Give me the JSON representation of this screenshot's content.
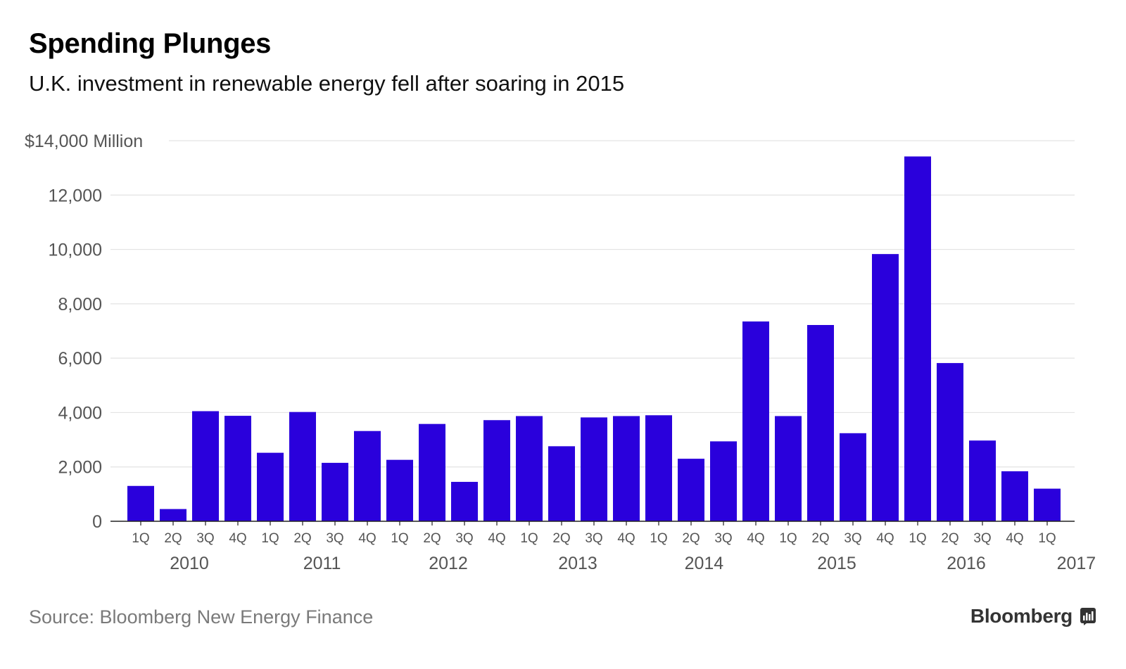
{
  "header": {
    "title": "Spending Plunges",
    "subtitle": "U.K. investment in renewable energy fell after soaring in 2015"
  },
  "footer": {
    "source": "Source: Bloomberg New Energy Finance",
    "brand": "Bloomberg"
  },
  "chart_data": {
    "type": "bar",
    "title": "Spending Plunges",
    "subtitle": "U.K. investment in renewable energy fell after soaring in 2015",
    "ylabel": "",
    "y_top_label": "$14,000 Million",
    "y_ticks": [
      0,
      2000,
      4000,
      6000,
      8000,
      10000,
      12000,
      14000
    ],
    "y_tick_labels": [
      "0",
      "2,000",
      "4,000",
      "6,000",
      "8,000",
      "10,000",
      "12,000",
      "$14,000 Million"
    ],
    "ylim": [
      0,
      14000
    ],
    "grid": true,
    "bar_color": "#2a00dc",
    "categories": [
      "1Q",
      "2Q",
      "3Q",
      "4Q",
      "1Q",
      "2Q",
      "3Q",
      "4Q",
      "1Q",
      "2Q",
      "3Q",
      "4Q",
      "1Q",
      "2Q",
      "3Q",
      "4Q",
      "1Q",
      "2Q",
      "3Q",
      "4Q",
      "1Q",
      "2Q",
      "3Q",
      "4Q",
      "1Q",
      "2Q",
      "3Q",
      "4Q",
      "1Q"
    ],
    "values": [
      1300,
      450,
      4050,
      3880,
      2520,
      4020,
      2150,
      3320,
      2260,
      3580,
      1450,
      3720,
      3870,
      2760,
      3820,
      3870,
      3900,
      2300,
      2940,
      7350,
      3870,
      7220,
      3240,
      9830,
      13420,
      5820,
      2970,
      1840,
      1200
    ],
    "year_labels": [
      {
        "label": "2010",
        "quarter_index": 1.5
      },
      {
        "label": "2011",
        "quarter_index": 5.6
      },
      {
        "label": "2012",
        "quarter_index": 9.5
      },
      {
        "label": "2013",
        "quarter_index": 13.5
      },
      {
        "label": "2014",
        "quarter_index": 17.4
      },
      {
        "label": "2015",
        "quarter_index": 21.5
      },
      {
        "label": "2016",
        "quarter_index": 25.5
      },
      {
        "label": "2017",
        "quarter_index": 28.9
      }
    ]
  }
}
